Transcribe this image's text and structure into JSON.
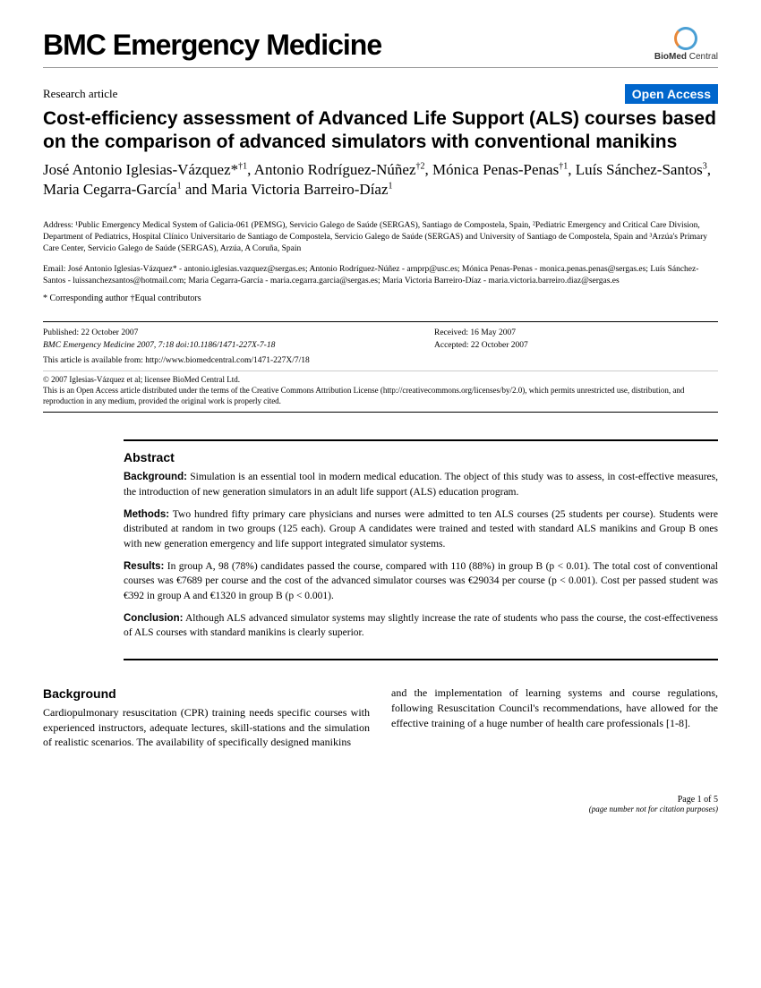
{
  "journal": "BMC Emergency Medicine",
  "publisher": {
    "name": "BioMed Central",
    "name_bold": "BioMed",
    "name_rest": " Central"
  },
  "article_type": "Research article",
  "open_access": "Open Access",
  "title": "Cost-efficiency assessment of Advanced Life Support (ALS) courses based on the comparison of advanced simulators with conventional manikins",
  "authors_html": "José Antonio Iglesias-Vázquez*<sup>†1</sup>, Antonio Rodríguez-Núñez<sup>†2</sup>, Mónica Penas-Penas<sup>†1</sup>, Luís Sánchez-Santos<sup>3</sup>, Maria Cegarra-García<sup>1</sup> and Maria Victoria Barreiro-Díaz<sup>1</sup>",
  "affiliations": "Address: ¹Public Emergency Medical System of Galicia-061 (PEMSG), Servicio Galego de Saúde (SERGAS), Santiago de Compostela, Spain, ²Pediatric Emergency and Critical Care Division, Department of Pediatrics, Hospital Clínico Universitario de Santiago de Compostela, Servicio Galego de Saúde (SERGAS) and University of Santiago de Compostela, Spain and ³Arzúa's Primary Care Center, Servicio Galego de Saúde (SERGAS), Arzúa, A Coruña, Spain",
  "emails": "Email: José Antonio Iglesias-Vázquez* - antonio.iglesias.vazquez@sergas.es; Antonio Rodríguez-Núñez - arnprp@usc.es; Mónica Penas-Penas - monica.penas.penas@sergas.es; Luís Sánchez-Santos - luissanchezsantos@hotmail.com; Maria Cegarra-García - maria.cegarra.garcia@sergas.es; Maria Victoria Barreiro-Díaz - maria.victoria.barreiro.diaz@sergas.es",
  "author_notes": "* Corresponding author    †Equal contributors",
  "pub": {
    "published": "Published: 22 October 2007",
    "journal_ref": "BMC Emergency Medicine 2007, 7:18    doi:10.1186/1471-227X-7-18",
    "received": "Received: 16 May 2007",
    "accepted": "Accepted: 22 October 2007",
    "url": "This article is available from: http://www.biomedcentral.com/1471-227X/7/18",
    "copyright": "© 2007 Iglesias-Vázquez et al; licensee BioMed Central Ltd.",
    "license": "This is an Open Access article distributed under the terms of the Creative Commons Attribution License (http://creativecommons.org/licenses/by/2.0), which permits unrestricted use, distribution, and reproduction in any medium, provided the original work is properly cited."
  },
  "abstract": {
    "heading": "Abstract",
    "background_label": "Background:",
    "background": " Simulation is an essential tool in modern medical education. The object of this study was to assess, in cost-effective measures, the introduction of new generation simulators in an adult life support (ALS) education program.",
    "methods_label": "Methods:",
    "methods": " Two hundred fifty primary care physicians and nurses were admitted to ten ALS courses (25 students per course). Students were distributed at random in two groups (125 each). Group A candidates were trained and tested with standard ALS manikins and Group B ones with new generation emergency and life support integrated simulator systems.",
    "results_label": "Results:",
    "results": " In group A, 98 (78%) candidates passed the course, compared with 110 (88%) in group B (p < 0.01). The total cost of conventional courses was €7689 per course and the cost of the advanced simulator courses was €29034 per course (p < 0.001). Cost per passed student was €392 in group A and €1320 in group B (p < 0.001).",
    "conclusion_label": "Conclusion:",
    "conclusion": " Although ALS advanced simulator systems may slightly increase the rate of students who pass the course, the cost-effectiveness of ALS courses with standard manikins is clearly superior."
  },
  "body": {
    "heading": "Background",
    "col1": "Cardiopulmonary resuscitation (CPR) training needs specific courses with experienced instructors, adequate lectures, skill-stations and the simulation of realistic scenarios. The availability of specifically designed manikins",
    "col2": "and the implementation of learning systems and course regulations, following Resuscitation Council's recommendations, have allowed for the effective training of a huge number of health care professionals [1-8]."
  },
  "footer": {
    "page": "Page 1 of 5",
    "note": "(page number not for citation purposes)"
  }
}
